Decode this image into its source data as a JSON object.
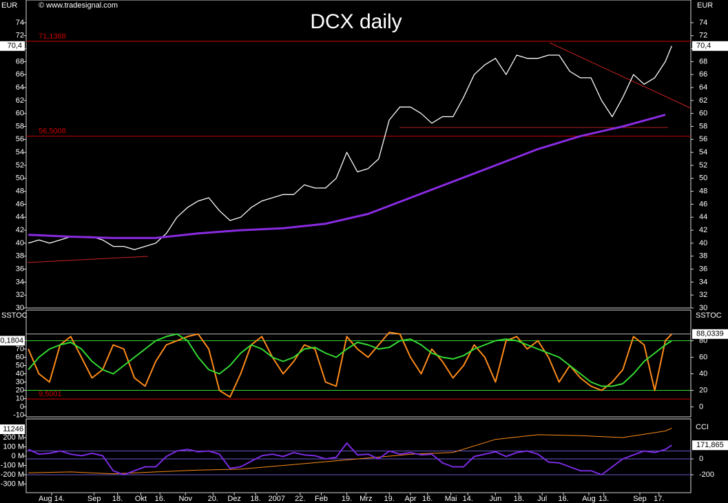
{
  "chart_data": [
    {
      "type": "line",
      "title": "DCX daily",
      "source": "© www.tradesignal.com",
      "y_label": "EUR",
      "ylim": [
        30,
        77.5
      ],
      "yticks": [
        30,
        32,
        34,
        36,
        38,
        40,
        42,
        44,
        46,
        48,
        50,
        52,
        54,
        56,
        58,
        60,
        62,
        64,
        66,
        68,
        70,
        72,
        74
      ],
      "xlim": [
        -1,
        312
      ],
      "series": [
        {
          "color": "#ffffff",
          "width": 1.3,
          "x": [
            0,
            5,
            10,
            15,
            20,
            25,
            30,
            35,
            40,
            45,
            50,
            55,
            60,
            65,
            70,
            75,
            80,
            85,
            90,
            95,
            100,
            105,
            110,
            115,
            120,
            125,
            130,
            135,
            140,
            145,
            150,
            155,
            160,
            165,
            170,
            175,
            180,
            185,
            190,
            195,
            200,
            205,
            210,
            215,
            220,
            225,
            230,
            235,
            240,
            245,
            250,
            255,
            260,
            265,
            270,
            275,
            280,
            285,
            290,
            295,
            300,
            303
          ],
          "values": [
            40,
            40.5,
            40,
            40.5,
            41,
            41,
            41,
            40.5,
            39.5,
            39.5,
            39,
            39.5,
            40,
            41.5,
            44,
            45.5,
            46.5,
            47,
            45,
            43.5,
            44,
            45.5,
            46.5,
            47,
            47.5,
            47.5,
            49,
            48.5,
            48.5,
            50,
            54,
            51,
            51.5,
            53,
            59,
            61,
            61,
            60,
            58.5,
            59.5,
            59.5,
            62.5,
            66,
            67.5,
            68.5,
            66,
            69,
            68.5,
            68.5,
            69,
            69,
            66.5,
            65.5,
            65.5,
            62,
            59.5,
            62.5,
            66,
            64.5,
            65.5,
            68,
            70.4
          ]
        },
        {
          "color": "#8a2be2",
          "width": 3,
          "x": [
            0,
            20,
            40,
            60,
            80,
            100,
            120,
            140,
            160,
            180,
            200,
            220,
            240,
            260,
            280,
            300
          ],
          "values": [
            41.3,
            41,
            40.8,
            40.8,
            41.5,
            42,
            42.3,
            43,
            44.5,
            47,
            49.5,
            52,
            54.5,
            56.5,
            58,
            59.8
          ]
        }
      ],
      "hlines": [
        {
          "value": 71.1368,
          "label": "71,1368",
          "color": "#cc0000",
          "label_side": "left"
        },
        {
          "value": 56.5008,
          "label": "56,5008",
          "color": "#cc0000",
          "label_side": "left"
        }
      ],
      "current": {
        "value": 70.4,
        "label": "70,4"
      }
    },
    {
      "type": "line",
      "title": "SSTOC",
      "ylim": [
        -12,
        117
      ],
      "yticks": [
        -10,
        0,
        10,
        20,
        30,
        40,
        50,
        60,
        70,
        80
      ],
      "y2ticks": [
        0,
        20,
        40,
        60,
        80
      ],
      "badge": "0,1804",
      "series": [
        {
          "color": "#ff8c1a",
          "width": 2,
          "x": [
            0,
            5,
            10,
            15,
            20,
            25,
            30,
            35,
            40,
            45,
            50,
            55,
            60,
            65,
            70,
            75,
            80,
            85,
            90,
            95,
            100,
            105,
            110,
            115,
            120,
            125,
            130,
            135,
            140,
            145,
            150,
            155,
            160,
            165,
            170,
            175,
            180,
            185,
            190,
            195,
            200,
            205,
            210,
            215,
            220,
            225,
            230,
            235,
            240,
            245,
            250,
            255,
            260,
            265,
            270,
            275,
            280,
            285,
            290,
            295,
            300,
            303
          ],
          "values": [
            70,
            40,
            30,
            75,
            85,
            60,
            35,
            45,
            75,
            70,
            35,
            25,
            55,
            75,
            80,
            85,
            88,
            70,
            20,
            12,
            40,
            75,
            85,
            60,
            40,
            55,
            75,
            70,
            30,
            25,
            85,
            70,
            60,
            75,
            90,
            88,
            60,
            40,
            70,
            55,
            35,
            50,
            75,
            60,
            30,
            80,
            85,
            70,
            80,
            60,
            30,
            50,
            35,
            25,
            20,
            30,
            45,
            85,
            75,
            20,
            80,
            88
          ]
        },
        {
          "color": "#33dd33",
          "width": 2,
          "x": [
            0,
            5,
            10,
            15,
            20,
            25,
            30,
            35,
            40,
            45,
            50,
            55,
            60,
            65,
            70,
            75,
            80,
            85,
            90,
            95,
            100,
            105,
            110,
            115,
            120,
            125,
            130,
            135,
            140,
            145,
            150,
            155,
            160,
            165,
            170,
            175,
            180,
            185,
            190,
            195,
            200,
            205,
            210,
            215,
            220,
            225,
            230,
            235,
            240,
            245,
            250,
            255,
            260,
            265,
            270,
            275,
            280,
            285,
            290,
            295,
            300,
            303
          ],
          "values": [
            45,
            60,
            70,
            75,
            78,
            70,
            55,
            45,
            40,
            50,
            60,
            70,
            80,
            85,
            88,
            80,
            60,
            45,
            40,
            50,
            65,
            75,
            70,
            60,
            55,
            60,
            70,
            72,
            65,
            60,
            70,
            78,
            75,
            70,
            72,
            80,
            82,
            75,
            65,
            60,
            58,
            62,
            70,
            75,
            80,
            82,
            80,
            75,
            70,
            65,
            60,
            50,
            40,
            30,
            25,
            25,
            28,
            40,
            55,
            65,
            75,
            80
          ]
        }
      ],
      "hlines": [
        {
          "value": 80,
          "color": "#33dd33"
        },
        {
          "value": 20,
          "color": "#33dd33"
        },
        {
          "value": 88.0339,
          "label": "88,0339",
          "color": "#bbbbbb",
          "label_side": "right"
        },
        {
          "value": 9.5001,
          "label": "9,5001",
          "color": "#cc0000",
          "label_side": "left"
        }
      ]
    },
    {
      "type": "line",
      "title": "CCI",
      "badge": "11246",
      "ylim": [
        -393,
        400
      ],
      "yticks": [
        {
          "value": -300,
          "label": "-300 M"
        },
        {
          "value": -200,
          "label": "-200 M"
        },
        {
          "value": -100,
          "label": "-100 M"
        },
        {
          "value": 0,
          "label": "0 M"
        },
        {
          "value": 100,
          "label": "100 M"
        },
        {
          "value": 200,
          "label": "200 M"
        }
      ],
      "y2lim": [
        -426,
        504
      ],
      "y2ticks": [
        -200,
        0
      ],
      "xticks": [
        {
          "value": 11,
          "label": "Aug 14."
        },
        {
          "value": 31,
          "label": "Sep"
        },
        {
          "value": 42,
          "label": "18."
        },
        {
          "value": 53,
          "label": "Okt"
        },
        {
          "value": 62,
          "label": "16."
        },
        {
          "value": 74,
          "label": "Nov"
        },
        {
          "value": 87,
          "label": "20."
        },
        {
          "value": 97,
          "label": "Dez"
        },
        {
          "value": 107,
          "label": "18."
        },
        {
          "value": 117,
          "label": "2007"
        },
        {
          "value": 128,
          "label": "22."
        },
        {
          "value": 138,
          "label": "Feb"
        },
        {
          "value": 150,
          "label": "19."
        },
        {
          "value": 159,
          "label": "Mrz"
        },
        {
          "value": 170,
          "label": "19."
        },
        {
          "value": 180,
          "label": "Apr"
        },
        {
          "value": 188,
          "label": "16."
        },
        {
          "value": 199,
          "label": "Mai"
        },
        {
          "value": 207,
          "label": "14."
        },
        {
          "value": 220,
          "label": "Jun"
        },
        {
          "value": 231,
          "label": "18."
        },
        {
          "value": 242,
          "label": "Jul"
        },
        {
          "value": 252,
          "label": "16."
        },
        {
          "value": 264,
          "label": "Aug"
        },
        {
          "value": 271,
          "label": "13."
        },
        {
          "value": 288,
          "label": "Sep"
        },
        {
          "value": 297,
          "label": "17."
        }
      ],
      "series": [
        {
          "color": "#ff8c1a",
          "width": 1,
          "x": [
            0,
            20,
            40,
            60,
            80,
            100,
            120,
            140,
            160,
            180,
            200,
            220,
            240,
            260,
            280,
            300,
            303
          ],
          "values": [
            -180,
            -170,
            -190,
            -170,
            -150,
            -140,
            -100,
            -60,
            -20,
            20,
            40,
            180,
            230,
            220,
            200,
            270,
            300
          ]
        },
        {
          "color": "#7b2be2",
          "width": 2,
          "axis": "y2",
          "x": [
            0,
            5,
            10,
            15,
            20,
            25,
            30,
            35,
            40,
            45,
            50,
            55,
            60,
            65,
            70,
            75,
            80,
            85,
            90,
            95,
            100,
            105,
            110,
            115,
            120,
            125,
            130,
            135,
            140,
            145,
            150,
            155,
            160,
            165,
            170,
            175,
            180,
            185,
            190,
            195,
            200,
            205,
            210,
            215,
            220,
            225,
            230,
            235,
            240,
            245,
            250,
            255,
            260,
            265,
            270,
            275,
            280,
            285,
            290,
            295,
            300,
            303
          ],
          "values": [
            120,
            60,
            70,
            100,
            60,
            40,
            70,
            40,
            -150,
            -200,
            -150,
            -100,
            -100,
            30,
            100,
            120,
            90,
            100,
            60,
            -120,
            -100,
            -30,
            40,
            60,
            30,
            80,
            50,
            40,
            0,
            20,
            200,
            50,
            60,
            0,
            100,
            60,
            80,
            50,
            60,
            -50,
            -100,
            -100,
            30,
            60,
            90,
            30,
            80,
            100,
            60,
            -40,
            -50,
            -100,
            -150,
            -150,
            -200,
            -100,
            0,
            50,
            100,
            80,
            120,
            171.865
          ]
        }
      ],
      "hlines": [
        {
          "value": 100,
          "color": "#6a5acd",
          "axis": "y2"
        },
        {
          "value": 0,
          "color": "#6a5acd",
          "axis": "y2"
        },
        {
          "value": -200,
          "color": "#6a5acd",
          "axis": "y2"
        }
      ],
      "current": {
        "value": 171.865,
        "label": "171,865",
        "axis": "y2"
      }
    }
  ]
}
